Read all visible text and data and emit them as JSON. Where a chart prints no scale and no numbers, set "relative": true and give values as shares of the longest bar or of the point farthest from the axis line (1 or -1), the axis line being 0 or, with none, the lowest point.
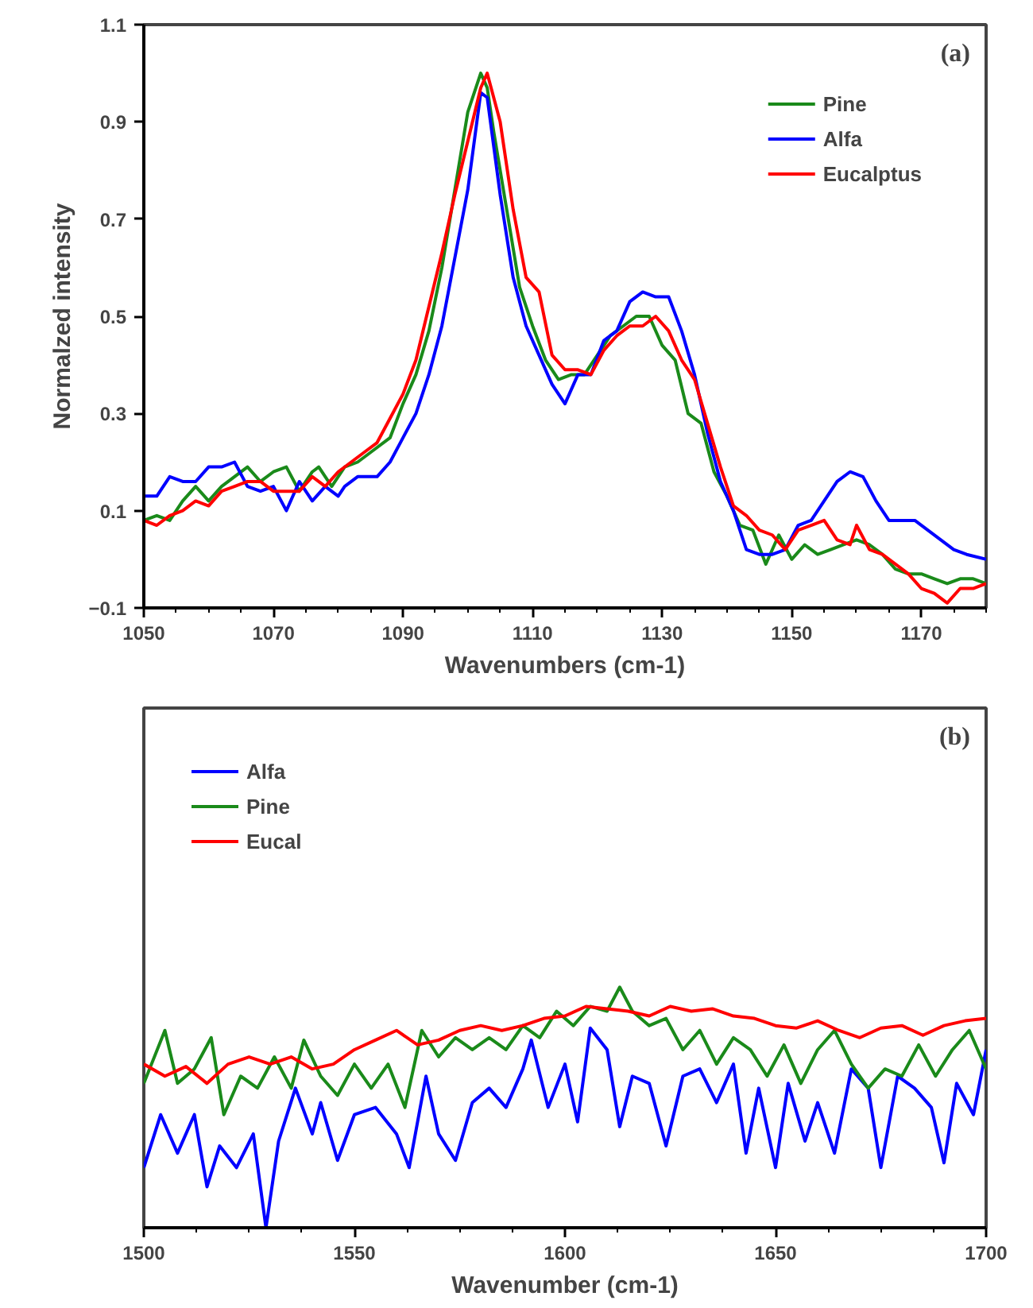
{
  "chart_data": [
    {
      "type": "line",
      "xlabel": "Wavenumbers (cm-1)",
      "ylabel": "Normalzed intensity",
      "annotations": [
        "(a)"
      ],
      "xlim": [
        1050,
        1180
      ],
      "xticks": [
        1050,
        1070,
        1090,
        1110,
        1130,
        1150,
        1170
      ],
      "ylim": [
        -0.1,
        1.1
      ],
      "yticks": [
        -0.1,
        0.1,
        0.3,
        0.5,
        0.7,
        0.9,
        1.1
      ],
      "grid": false,
      "legend": "top right",
      "marker": "none",
      "line_style": "solid",
      "series": [
        {
          "name": "Pine",
          "color": "#1a8a1a",
          "x": [
            1050,
            1052,
            1054,
            1056,
            1058,
            1060,
            1062,
            1064,
            1066,
            1068,
            1070,
            1072,
            1074,
            1076,
            1077,
            1079,
            1081,
            1083,
            1085,
            1088,
            1090,
            1092,
            1094,
            1096,
            1098,
            1100,
            1102,
            1103,
            1104,
            1106,
            1108,
            1110,
            1112,
            1114,
            1116,
            1118,
            1120,
            1122,
            1124,
            1126,
            1128,
            1130,
            1132,
            1134,
            1136,
            1138,
            1140,
            1142,
            1144,
            1146,
            1148,
            1150,
            1152,
            1154,
            1156,
            1158,
            1160,
            1162,
            1164,
            1166,
            1168,
            1170,
            1172,
            1174,
            1176,
            1178,
            1180
          ],
          "values": [
            0.08,
            0.09,
            0.08,
            0.12,
            0.15,
            0.12,
            0.15,
            0.17,
            0.19,
            0.16,
            0.18,
            0.19,
            0.14,
            0.18,
            0.19,
            0.15,
            0.19,
            0.2,
            0.22,
            0.25,
            0.32,
            0.38,
            0.47,
            0.6,
            0.76,
            0.92,
            1.0,
            0.97,
            0.88,
            0.72,
            0.56,
            0.48,
            0.41,
            0.37,
            0.38,
            0.38,
            0.42,
            0.46,
            0.48,
            0.5,
            0.5,
            0.44,
            0.41,
            0.3,
            0.28,
            0.18,
            0.13,
            0.07,
            0.06,
            -0.01,
            0.05,
            0.0,
            0.03,
            0.01,
            0.02,
            0.03,
            0.04,
            0.03,
            0.01,
            -0.02,
            -0.03,
            -0.03,
            -0.04,
            -0.05,
            -0.04,
            -0.04,
            -0.05
          ]
        },
        {
          "name": "Alfa",
          "color": "#0000ff",
          "x": [
            1050,
            1052,
            1054,
            1056,
            1058,
            1060,
            1062,
            1064,
            1066,
            1068,
            1070,
            1072,
            1074,
            1076,
            1078,
            1080,
            1081,
            1083,
            1086,
            1088,
            1090,
            1092,
            1094,
            1096,
            1098,
            1100,
            1102,
            1103,
            1105,
            1107,
            1109,
            1111,
            1113,
            1115,
            1117,
            1119,
            1121,
            1123,
            1125,
            1127,
            1129,
            1131,
            1133,
            1135,
            1137,
            1139,
            1141,
            1143,
            1145,
            1147,
            1149,
            1151,
            1153,
            1155,
            1157,
            1159,
            1161,
            1163,
            1165,
            1167,
            1169,
            1171,
            1173,
            1175,
            1177,
            1180
          ],
          "values": [
            0.13,
            0.13,
            0.17,
            0.16,
            0.16,
            0.19,
            0.19,
            0.2,
            0.15,
            0.14,
            0.15,
            0.1,
            0.16,
            0.12,
            0.15,
            0.13,
            0.15,
            0.17,
            0.17,
            0.2,
            0.25,
            0.3,
            0.38,
            0.48,
            0.62,
            0.76,
            0.96,
            0.95,
            0.75,
            0.58,
            0.48,
            0.42,
            0.36,
            0.32,
            0.38,
            0.38,
            0.45,
            0.47,
            0.53,
            0.55,
            0.54,
            0.54,
            0.47,
            0.38,
            0.26,
            0.16,
            0.1,
            0.02,
            0.01,
            0.01,
            0.02,
            0.07,
            0.08,
            0.12,
            0.16,
            0.18,
            0.17,
            0.12,
            0.08,
            0.08,
            0.08,
            0.06,
            0.04,
            0.02,
            0.01,
            0.0
          ]
        },
        {
          "name": "Eucalptus",
          "color": "#ff0000",
          "x": [
            1050,
            1052,
            1054,
            1056,
            1058,
            1060,
            1062,
            1064,
            1066,
            1068,
            1070,
            1072,
            1074,
            1076,
            1078,
            1080,
            1082,
            1084,
            1086,
            1088,
            1090,
            1092,
            1094,
            1096,
            1098,
            1100,
            1102,
            1103,
            1105,
            1107,
            1109,
            1111,
            1113,
            1115,
            1117,
            1119,
            1121,
            1123,
            1125,
            1127,
            1129,
            1131,
            1133,
            1135,
            1137,
            1139,
            1141,
            1143,
            1145,
            1147,
            1149,
            1151,
            1153,
            1155,
            1157,
            1159,
            1160,
            1162,
            1164,
            1166,
            1168,
            1170,
            1172,
            1174,
            1176,
            1178,
            1180
          ],
          "values": [
            0.08,
            0.07,
            0.09,
            0.1,
            0.12,
            0.11,
            0.14,
            0.15,
            0.16,
            0.16,
            0.14,
            0.14,
            0.14,
            0.17,
            0.15,
            0.18,
            0.2,
            0.22,
            0.24,
            0.29,
            0.34,
            0.41,
            0.52,
            0.63,
            0.75,
            0.86,
            0.97,
            1.0,
            0.9,
            0.72,
            0.58,
            0.55,
            0.42,
            0.39,
            0.39,
            0.38,
            0.43,
            0.46,
            0.48,
            0.48,
            0.5,
            0.47,
            0.41,
            0.37,
            0.28,
            0.19,
            0.11,
            0.09,
            0.06,
            0.05,
            0.02,
            0.06,
            0.07,
            0.08,
            0.04,
            0.03,
            0.07,
            0.02,
            0.01,
            -0.01,
            -0.03,
            -0.06,
            -0.07,
            -0.09,
            -0.06,
            -0.06,
            -0.05
          ]
        }
      ]
    },
    {
      "type": "line",
      "xlabel": "Wavenumber (cm-1)",
      "annotations": [
        "(b)"
      ],
      "relative": true,
      "xlim": [
        1500,
        1700
      ],
      "xticks": [
        1500,
        1550,
        1600,
        1650,
        1700
      ],
      "tick_labels": "x",
      "grid": false,
      "legend": "top left",
      "marker": "none",
      "line_style": "solid",
      "series": [
        {
          "name": "Alfa",
          "color": "#0000ff",
          "x": [
            1500,
            1504,
            1508,
            1512,
            1515,
            1518,
            1522,
            1526,
            1529,
            1532,
            1536,
            1540,
            1542,
            1546,
            1550,
            1555,
            1560,
            1563,
            1567,
            1570,
            1574,
            1578,
            1582,
            1586,
            1590,
            1592,
            1596,
            1600,
            1603,
            1606,
            1610,
            1613,
            1616,
            1620,
            1624,
            1628,
            1632,
            1636,
            1640,
            1643,
            1646,
            1650,
            1653,
            1657,
            1660,
            1664,
            1668,
            1672,
            1675,
            1679,
            1683,
            1687,
            1690,
            1693,
            1697,
            1700
          ],
          "values": [
            0.25,
            0.47,
            0.31,
            0.47,
            0.17,
            0.34,
            0.25,
            0.39,
            0.0,
            0.36,
            0.58,
            0.39,
            0.52,
            0.28,
            0.47,
            0.5,
            0.39,
            0.25,
            0.63,
            0.39,
            0.28,
            0.52,
            0.58,
            0.5,
            0.66,
            0.78,
            0.5,
            0.68,
            0.44,
            0.83,
            0.74,
            0.42,
            0.63,
            0.6,
            0.34,
            0.63,
            0.66,
            0.52,
            0.68,
            0.31,
            0.58,
            0.25,
            0.6,
            0.36,
            0.52,
            0.31,
            0.66,
            0.58,
            0.25,
            0.63,
            0.58,
            0.5,
            0.27,
            0.6,
            0.47,
            0.74
          ]
        },
        {
          "name": "Pine",
          "color": "#1a8a1a",
          "x": [
            1500,
            1505,
            1508,
            1512,
            1516,
            1519,
            1523,
            1527,
            1531,
            1535,
            1538,
            1542,
            1546,
            1550,
            1554,
            1558,
            1562,
            1566,
            1570,
            1574,
            1578,
            1582,
            1586,
            1590,
            1594,
            1598,
            1602,
            1606,
            1610,
            1613,
            1616,
            1620,
            1624,
            1628,
            1632,
            1636,
            1640,
            1644,
            1648,
            1652,
            1656,
            1660,
            1664,
            1668,
            1672,
            1676,
            1680,
            1684,
            1688,
            1692,
            1696,
            1700
          ],
          "values": [
            0.6,
            0.82,
            0.6,
            0.66,
            0.79,
            0.47,
            0.63,
            0.58,
            0.71,
            0.58,
            0.78,
            0.63,
            0.55,
            0.68,
            0.58,
            0.68,
            0.5,
            0.82,
            0.71,
            0.79,
            0.74,
            0.79,
            0.74,
            0.84,
            0.79,
            0.9,
            0.84,
            0.92,
            0.9,
            1.0,
            0.9,
            0.84,
            0.87,
            0.74,
            0.82,
            0.68,
            0.79,
            0.74,
            0.63,
            0.76,
            0.6,
            0.74,
            0.82,
            0.68,
            0.58,
            0.66,
            0.63,
            0.76,
            0.63,
            0.74,
            0.82,
            0.66
          ]
        },
        {
          "name": "Eucal",
          "color": "#ff0000",
          "x": [
            1500,
            1505,
            1510,
            1515,
            1520,
            1525,
            1530,
            1535,
            1540,
            1545,
            1550,
            1555,
            1560,
            1565,
            1570,
            1575,
            1580,
            1585,
            1590,
            1595,
            1600,
            1605,
            1610,
            1615,
            1620,
            1625,
            1630,
            1635,
            1640,
            1645,
            1650,
            1655,
            1660,
            1665,
            1670,
            1675,
            1680,
            1685,
            1690,
            1695,
            1700
          ],
          "values": [
            0.68,
            0.63,
            0.67,
            0.6,
            0.68,
            0.71,
            0.68,
            0.71,
            0.66,
            0.68,
            0.74,
            0.78,
            0.82,
            0.76,
            0.78,
            0.82,
            0.84,
            0.82,
            0.84,
            0.87,
            0.88,
            0.92,
            0.91,
            0.9,
            0.88,
            0.92,
            0.9,
            0.91,
            0.88,
            0.87,
            0.84,
            0.83,
            0.86,
            0.82,
            0.79,
            0.83,
            0.84,
            0.8,
            0.84,
            0.86,
            0.87
          ]
        }
      ]
    }
  ]
}
